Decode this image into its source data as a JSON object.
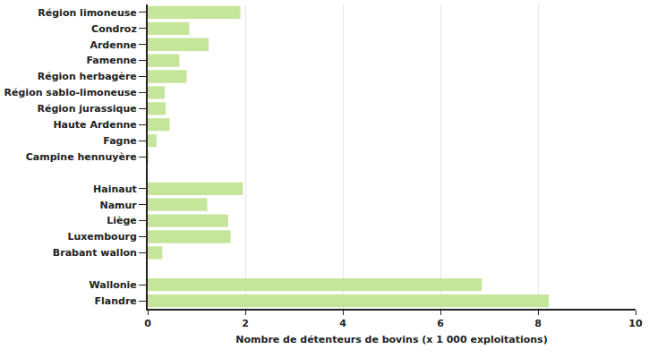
{
  "chart_data": {
    "type": "bar",
    "orientation": "horizontal",
    "x_label": "Nombre de détenteurs de bovins (x 1 000 exploitations)",
    "categories": [
      "Région limoneuse",
      "Condroz",
      "Ardenne",
      "Famenne",
      "Région herbagère",
      "Région sablo-limoneuse",
      "Région jurassique",
      "Haute Ardenne",
      "Fagne",
      "Campine hennuyère",
      null,
      "Hainaut",
      "Namur",
      "Liège",
      "Luxembourg",
      "Brabant wallon",
      null,
      "Wallonie",
      "Flandre"
    ],
    "values": [
      1.9,
      0.85,
      1.25,
      0.65,
      0.8,
      0.35,
      0.37,
      0.45,
      0.18,
      0.02,
      null,
      1.95,
      1.22,
      1.65,
      1.7,
      0.3,
      null,
      6.85,
      8.22
    ],
    "color": "#c5e69a",
    "xlim": [
      0,
      10
    ],
    "xticks": [
      0,
      2,
      4,
      6,
      8,
      10
    ],
    "grid": true
  }
}
